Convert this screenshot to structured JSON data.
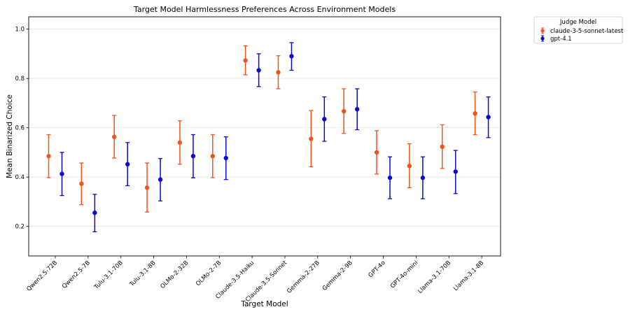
{
  "chart_data": {
    "type": "errorbar",
    "title": "Target Model Harmlessness Preferences Across Environment Models",
    "xlabel": "Target Model",
    "ylabel": "Mean Binarized Choice",
    "ylim": [
      0.08,
      1.05
    ],
    "yticks": [
      0.2,
      0.4,
      0.6,
      0.8,
      1.0
    ],
    "ytick_labels": [
      "0.2",
      "0.4",
      "0.6",
      "0.8",
      "1.0"
    ],
    "grid": "horizontal",
    "categories": [
      "Qwen2.5-72B",
      "Qwen2.5-7B",
      "Tulu-3.1-70B",
      "Tulu-3.1-8B",
      "OLMo-2-32B",
      "OLMo-2-7B",
      "Claude-3.5-Haiku",
      "Claude-3.5-Sonnet",
      "Gemma-2-27B",
      "Gemma-2-9B",
      "GPT-4o",
      "GPT-4o-mini",
      "Llama-3.1-70B",
      "Llama-3.1-8B"
    ],
    "legend": {
      "title": "Judge Model",
      "placement": "outside-top-right"
    },
    "series": [
      {
        "name": "claude-3-5-sonnet-latest",
        "color": "#f0561c",
        "values": [
          0.485,
          0.373,
          0.563,
          0.357,
          0.54,
          0.485,
          0.873,
          0.825,
          0.555,
          0.667,
          0.5,
          0.445,
          0.523,
          0.658
        ],
        "lower": [
          0.398,
          0.288,
          0.477,
          0.258,
          0.452,
          0.398,
          0.815,
          0.758,
          0.442,
          0.577,
          0.412,
          0.357,
          0.435,
          0.572
        ],
        "upper": [
          0.572,
          0.457,
          0.65,
          0.457,
          0.628,
          0.572,
          0.932,
          0.892,
          0.67,
          0.758,
          0.588,
          0.535,
          0.612,
          0.745
        ]
      },
      {
        "name": "gpt-4.1",
        "color": "#0a0acb",
        "values": [
          0.413,
          0.255,
          0.452,
          0.39,
          0.485,
          0.477,
          0.833,
          0.89,
          0.635,
          0.675,
          0.397,
          0.397,
          0.422,
          0.643
        ],
        "lower": [
          0.325,
          0.178,
          0.365,
          0.303,
          0.397,
          0.39,
          0.767,
          0.833,
          0.545,
          0.592,
          0.312,
          0.312,
          0.333,
          0.56
        ],
        "upper": [
          0.5,
          0.33,
          0.54,
          0.475,
          0.572,
          0.563,
          0.9,
          0.945,
          0.725,
          0.758,
          0.482,
          0.482,
          0.508,
          0.725
        ]
      }
    ]
  }
}
